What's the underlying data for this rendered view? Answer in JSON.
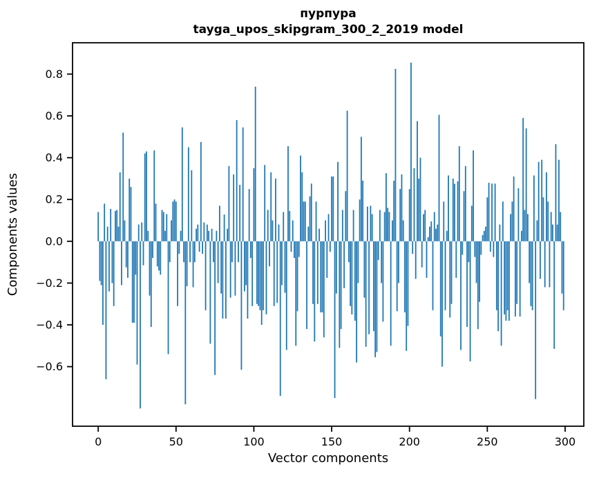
{
  "figure": {
    "title_line1": "пурпура",
    "title_line2": "tayga_upos_skipgram_300_2_2019 model"
  },
  "chart_data": {
    "type": "bar",
    "title": "пурпура — tayga_upos_skipgram_300_2_2019 model",
    "xlabel": "Vector components",
    "ylabel": "Components values",
    "bar_color": "#1f77b4",
    "frame_color": "#000000",
    "grid": false,
    "legend": null,
    "x_is_index": true,
    "n_points": 300,
    "x_ticks": [
      0,
      50,
      100,
      150,
      200,
      250,
      300
    ],
    "y_ticks": [
      0.8,
      0.6,
      0.4,
      0.2,
      0.0,
      -0.2,
      -0.4,
      -0.6
    ],
    "xlim": [
      -16.5,
      312
    ],
    "ylim": [
      -0.885,
      0.95
    ],
    "values": [
      0.14,
      -0.19,
      -0.21,
      -0.4,
      0.18,
      -0.66,
      0.07,
      -0.24,
      0.155,
      -0.2,
      -0.31,
      0.145,
      0.15,
      0.07,
      0.33,
      -0.21,
      0.52,
      0.1,
      -0.125,
      -0.175,
      0.3,
      0.26,
      -0.39,
      -0.39,
      -0.16,
      -0.59,
      0.08,
      -0.8,
      0.09,
      -0.115,
      0.42,
      0.43,
      0.05,
      -0.26,
      -0.41,
      -0.08,
      0.435,
      0.18,
      -0.12,
      -0.14,
      -0.16,
      0.15,
      0.14,
      0.05,
      0.13,
      -0.54,
      -0.1,
      0.1,
      0.19,
      0.2,
      0.19,
      -0.31,
      -0.06,
      0.05,
      0.545,
      -0.1,
      -0.78,
      -0.215,
      0.45,
      -0.1,
      0.34,
      -0.22,
      -0.1,
      0.06,
      0.08,
      -0.05,
      0.475,
      -0.06,
      0.09,
      -0.33,
      0.08,
      0.05,
      -0.49,
      0.06,
      -0.1,
      -0.64,
      0.05,
      -0.2,
      0.17,
      -0.25,
      -0.37,
      0.128,
      -0.37,
      0.06,
      0.36,
      -0.27,
      -0.1,
      0.32,
      -0.26,
      0.58,
      -0.1,
      0.27,
      -0.615,
      0.545,
      -0.24,
      -0.21,
      -0.37,
      0.25,
      -0.08,
      -0.31,
      0.35,
      0.74,
      -0.3,
      -0.31,
      -0.33,
      -0.4,
      -0.33,
      0.365,
      -0.35,
      0.15,
      -0.12,
      0.33,
      0.1,
      -0.31,
      0.3,
      -0.295,
      0.08,
      -0.74,
      -0.21,
      0.14,
      -0.246,
      -0.52,
      0.455,
      0.145,
      -0.05,
      0.1,
      -0.08,
      -0.5,
      -0.335,
      -0.075,
      0.41,
      0.33,
      0.19,
      0.19,
      -0.42,
      0.07,
      0.215,
      0.276,
      -0.3,
      -0.48,
      0.19,
      -0.3,
      0.06,
      -0.34,
      -0.34,
      -0.46,
      0.1,
      -0.175,
      0.13,
      -0.05,
      0.31,
      0.31,
      -0.75,
      -0.25,
      0.38,
      -0.51,
      -0.42,
      0.15,
      -0.224,
      0.24,
      0.625,
      -0.1,
      -0.31,
      -0.35,
      0.15,
      -0.38,
      -0.58,
      -0.2,
      0.2,
      0.5,
      0.29,
      -0.27,
      -0.505,
      0.166,
      -0.445,
      0.17,
      0.13,
      -0.43,
      -0.555,
      -0.53,
      -0.09,
      0.15,
      -0.2,
      -0.385,
      0.14,
      0.326,
      0.16,
      0.14,
      -0.5,
      0.1,
      0.29,
      0.825,
      -0.335,
      -0.2,
      0.25,
      0.32,
      0.1,
      -0.34,
      -0.525,
      -0.405,
      0.25,
      0.855,
      -0.06,
      0.35,
      -0.18,
      0.575,
      0.3,
      0.4,
      -0.125,
      0.13,
      0.15,
      -0.175,
      0.02,
      0.07,
      0.095,
      -0.33,
      0.14,
      0.06,
      0.08,
      0.605,
      -0.455,
      -0.6,
      0.19,
      -0.33,
      0.05,
      0.315,
      -0.365,
      -0.3,
      0.3,
      0.275,
      -0.175,
      0.287,
      0.455,
      -0.52,
      -0.065,
      0.24,
      0.36,
      -0.41,
      -0.1,
      -0.575,
      0.17,
      0.435,
      -0.075,
      -0.2,
      -0.42,
      -0.29,
      -0.065,
      0.03,
      0.05,
      0.07,
      0.21,
      0.28,
      -0.05,
      0.276,
      -0.075,
      0.276,
      -0.33,
      -0.43,
      0.08,
      -0.5,
      0.19,
      -0.35,
      -0.38,
      -0.33,
      -0.38,
      0.13,
      0.19,
      0.31,
      -0.36,
      -0.3,
      0.254,
      -0.36,
      0.05,
      0.59,
      0.15,
      0.54,
      0.13,
      -0.2,
      -0.31,
      -0.33,
      0.315,
      -0.755,
      0.1,
      0.38,
      -0.18,
      0.39,
      0.21,
      -0.22,
      0.33,
      0.19,
      -0.22,
      0.14,
      0.08,
      -0.515,
      0.465,
      0.08,
      0.39,
      0.14,
      -0.25,
      -0.33
    ]
  }
}
